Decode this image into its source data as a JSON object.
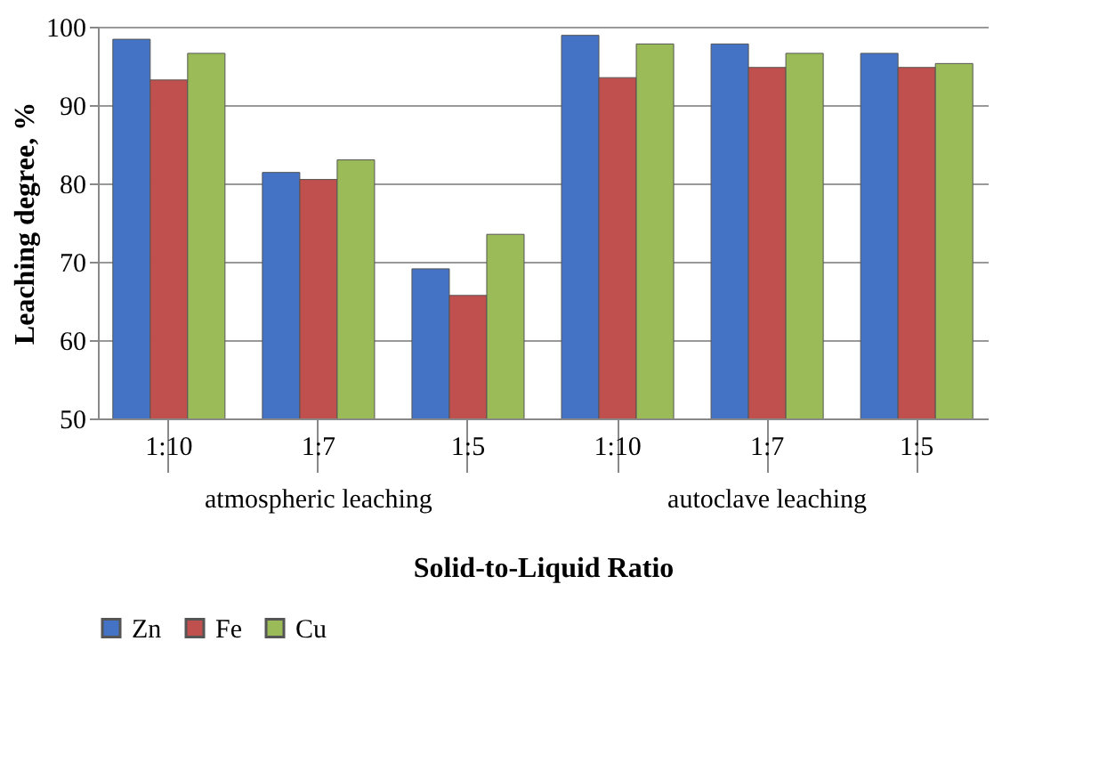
{
  "chart_data": {
    "type": "bar",
    "xlabel": "Solid-to-Liquid Ratio",
    "ylabel": "Leaching degree, %",
    "categories": [
      "1:10",
      "1:7",
      "1:5",
      "1:10",
      "1:7",
      "1:5"
    ],
    "series": [
      {
        "name": "Zn",
        "color": "#4472c4",
        "values": [
          98.4,
          81.4,
          69.1,
          98.9,
          97.8,
          96.6
        ]
      },
      {
        "name": "Fe",
        "color": "#c0504d",
        "values": [
          93.2,
          80.5,
          65.7,
          93.5,
          94.8,
          94.8
        ]
      },
      {
        "name": "Cu",
        "color": "#9bbb59",
        "values": [
          96.6,
          83.0,
          73.5,
          97.8,
          96.6,
          95.3
        ]
      }
    ],
    "annotations": [
      "atmospheric leaching",
      "autoclave leaching"
    ],
    "ylim": [
      50,
      100
    ],
    "yticks": [
      50,
      60,
      70,
      80,
      90,
      100
    ],
    "grid": "y",
    "legend": "bottom"
  }
}
